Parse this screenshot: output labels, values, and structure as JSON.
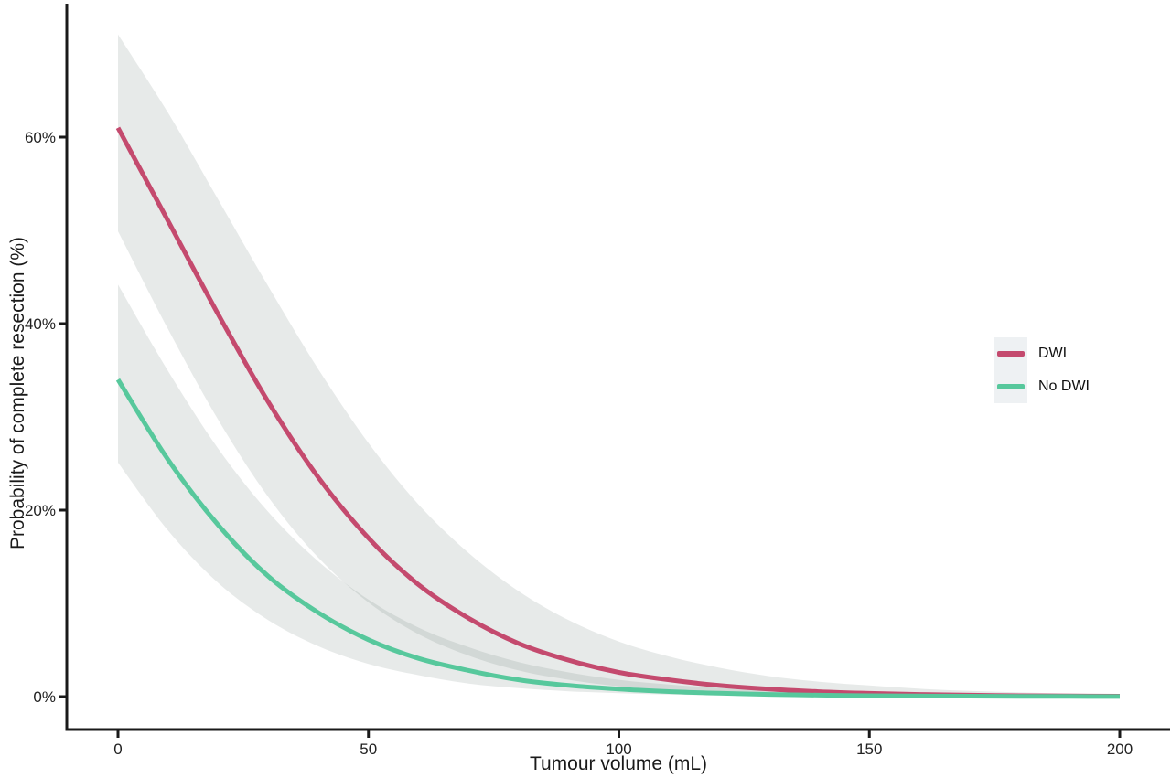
{
  "figure": {
    "background": "#ffffff",
    "axis_color": "#1a1a1a",
    "tick_label_color": "#222222"
  },
  "chart_data": {
    "type": "line",
    "title": "",
    "xlabel": "Tumour volume (mL)",
    "ylabel": "Probability of complete resection (%)",
    "xlim": [
      0,
      200
    ],
    "ylim_percent": [
      0,
      75
    ],
    "grid": false,
    "legend_position": "right-middle",
    "band_fill": "rgba(100,118,112,0.155)",
    "x_ticks": [
      {
        "v": 0,
        "label": "0"
      },
      {
        "v": 50,
        "label": "50"
      },
      {
        "v": 100,
        "label": "100"
      },
      {
        "v": 150,
        "label": "150"
      },
      {
        "v": 200,
        "label": "200"
      }
    ],
    "y_ticks": [
      {
        "p": 0,
        "label": "0%"
      },
      {
        "p": 20,
        "label": "20%"
      },
      {
        "p": 40,
        "label": "40%"
      },
      {
        "p": 60,
        "label": "60%"
      }
    ],
    "x": [
      0,
      10,
      20,
      30,
      40,
      50,
      60,
      70,
      80,
      90,
      100,
      110,
      120,
      130,
      140,
      150,
      160,
      170,
      180,
      190,
      200
    ],
    "series": [
      {
        "name": "DWI",
        "color": "#c44a6e",
        "probability_percent": [
          61,
          51,
          41,
          31.6,
          23.5,
          17,
          12,
          8.4,
          5.7,
          3.9,
          2.6,
          1.8,
          1.2,
          0.8,
          0.53,
          0.35,
          0.24,
          0.16,
          0.1,
          0.07,
          0.05
        ],
        "ci_lower_percent": [
          49.9,
          39.4,
          29.7,
          21.4,
          14.9,
          10.1,
          6.7,
          4.4,
          2.8,
          1.8,
          1.1,
          0.7,
          0.45,
          0.28,
          0.17,
          0.11,
          0.07,
          0.04,
          0.025,
          0.015,
          0.01
        ],
        "ci_upper_percent": [
          71,
          62.6,
          53.3,
          44,
          35.1,
          27.2,
          20.6,
          15.4,
          11.3,
          8.2,
          5.9,
          4.3,
          3.1,
          2.2,
          1.6,
          1.2,
          0.84,
          0.61,
          0.45,
          0.33,
          0.24
        ]
      },
      {
        "name": "No DWI",
        "color": "#57c89c",
        "probability_percent": [
          34,
          25.4,
          18.4,
          12.9,
          9,
          6.1,
          4.1,
          2.8,
          1.8,
          1.2,
          0.81,
          0.54,
          0.36,
          0.24,
          0.16,
          0.1,
          0.07,
          0.05,
          0.03,
          0.02,
          0.013
        ],
        "ci_lower_percent": [
          25.1,
          17.8,
          12.2,
          8.2,
          5.4,
          3.5,
          2.3,
          1.4,
          0.9,
          0.57,
          0.36,
          0.22,
          0.14,
          0.09,
          0.05,
          0.03,
          0.02,
          0.012,
          0.007,
          0.004,
          0.003
        ],
        "ci_upper_percent": [
          44.2,
          34.9,
          26.6,
          19.8,
          14.5,
          10.4,
          7.4,
          5.3,
          3.7,
          2.6,
          1.8,
          1.3,
          0.93,
          0.66,
          0.47,
          0.34,
          0.24,
          0.17,
          0.13,
          0.09,
          0.07
        ]
      }
    ]
  },
  "legend": {
    "key_background": "#eef1f3",
    "items": [
      {
        "label": "DWI",
        "color": "#c44a6e"
      },
      {
        "label": "No DWI",
        "color": "#57c89c"
      }
    ]
  }
}
